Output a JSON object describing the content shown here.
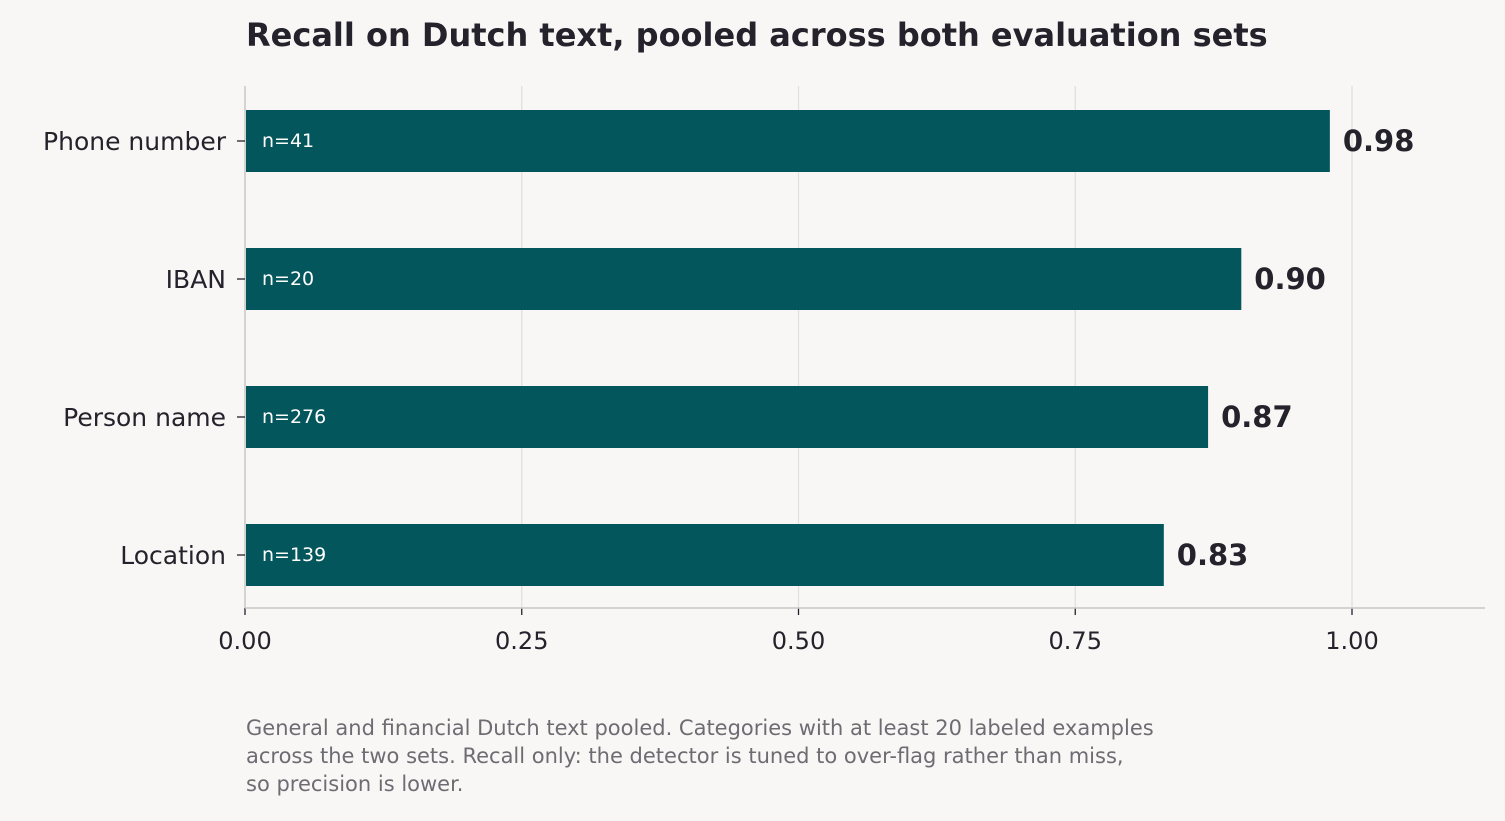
{
  "chart_data": {
    "type": "bar",
    "orientation": "horizontal",
    "title": "Recall on Dutch text, pooled across both evaluation sets",
    "xlabel": "",
    "ylabel": "",
    "categories": [
      "Phone number",
      "IBAN",
      "Person name",
      "Location"
    ],
    "values": [
      0.98,
      0.9,
      0.87,
      0.83
    ],
    "value_labels": [
      "0.98",
      "0.90",
      "0.87",
      "0.83"
    ],
    "n_labels": [
      "n=41",
      "n=20",
      "n=276",
      "n=139"
    ],
    "xlim": [
      0,
      1.12
    ],
    "xticks": [
      0.0,
      0.25,
      0.5,
      0.75,
      1.0
    ],
    "xtick_labels": [
      "0.00",
      "0.25",
      "0.50",
      "0.75",
      "1.00"
    ],
    "grid": "vertical",
    "legend": "none",
    "bar_color": "#03565c",
    "grid_color": "#e2e0dd",
    "axis_color": "#c9c7c4"
  },
  "footnote": {
    "lines": [
      "General and financial Dutch text pooled. Categories with at least 20 labeled examples",
      "across the two sets. Recall only: the detector is tuned to over-flag rather than miss,",
      "so precision is lower."
    ]
  }
}
